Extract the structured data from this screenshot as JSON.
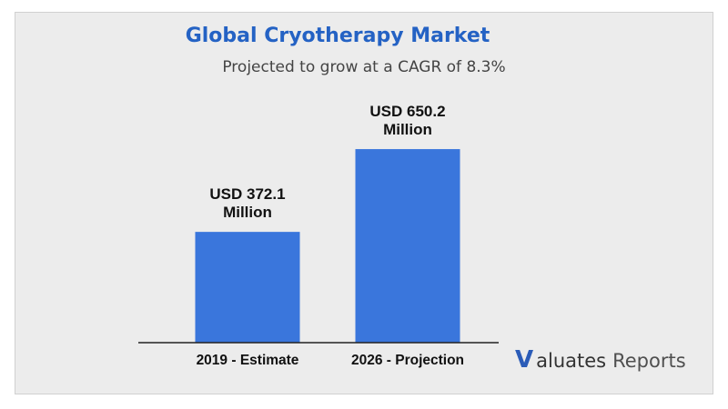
{
  "chart_data": {
    "type": "bar",
    "title": "Global Cryotherapy Market",
    "subtitle": "Projected to grow at a CAGR of 8.3%",
    "categories": [
      "2019 - Estimate",
      "2026 - Projection"
    ],
    "values": [
      372.1,
      650.2
    ],
    "value_labels": [
      [
        "USD 372.1",
        "Million"
      ],
      [
        "USD 650.2",
        "Million"
      ]
    ],
    "ylim": [
      0,
      800
    ],
    "grid": false,
    "bar_color": "#3a76dc"
  },
  "brand": {
    "v": "V",
    "name": "aluates",
    "suffix": "Reports"
  }
}
